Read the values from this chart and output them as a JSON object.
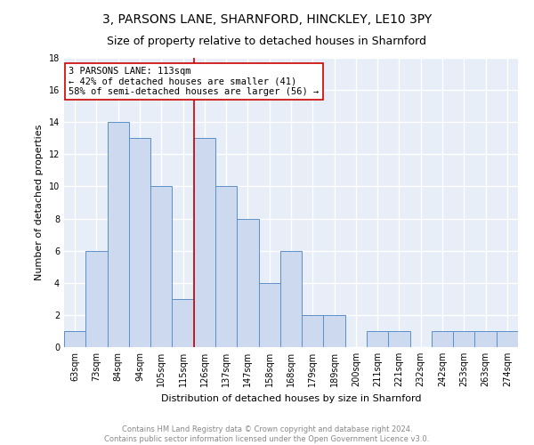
{
  "title": "3, PARSONS LANE, SHARNFORD, HINCKLEY, LE10 3PY",
  "subtitle": "Size of property relative to detached houses in Sharnford",
  "xlabel": "Distribution of detached houses by size in Sharnford",
  "ylabel": "Number of detached properties",
  "categories": [
    "63sqm",
    "73sqm",
    "84sqm",
    "94sqm",
    "105sqm",
    "115sqm",
    "126sqm",
    "137sqm",
    "147sqm",
    "158sqm",
    "168sqm",
    "179sqm",
    "189sqm",
    "200sqm",
    "211sqm",
    "221sqm",
    "232sqm",
    "242sqm",
    "253sqm",
    "263sqm",
    "274sqm"
  ],
  "values": [
    1,
    6,
    14,
    13,
    10,
    3,
    13,
    10,
    8,
    4,
    6,
    2,
    2,
    0,
    1,
    1,
    0,
    1,
    1,
    1,
    1
  ],
  "bar_color": "#ccd9ef",
  "bar_edge_color": "#5b8fc9",
  "vline_x": 5.5,
  "vline_color": "#cc0000",
  "annotation_line1": "3 PARSONS LANE: 113sqm",
  "annotation_line2": "← 42% of detached houses are smaller (41)",
  "annotation_line3": "58% of semi-detached houses are larger (56) →",
  "annotation_box_color": "white",
  "annotation_box_edge": "#cc0000",
  "ylim": [
    0,
    18
  ],
  "yticks": [
    0,
    2,
    4,
    6,
    8,
    10,
    12,
    14,
    16,
    18
  ],
  "footer_line1": "Contains HM Land Registry data © Crown copyright and database right 2024.",
  "footer_line2": "Contains public sector information licensed under the Open Government Licence v3.0.",
  "background_color": "#e8eef8",
  "grid_color": "white",
  "title_fontsize": 10,
  "subtitle_fontsize": 9,
  "ylabel_fontsize": 8,
  "xlabel_fontsize": 8,
  "tick_fontsize": 7,
  "footer_fontsize": 6,
  "annotation_fontsize": 7.5
}
